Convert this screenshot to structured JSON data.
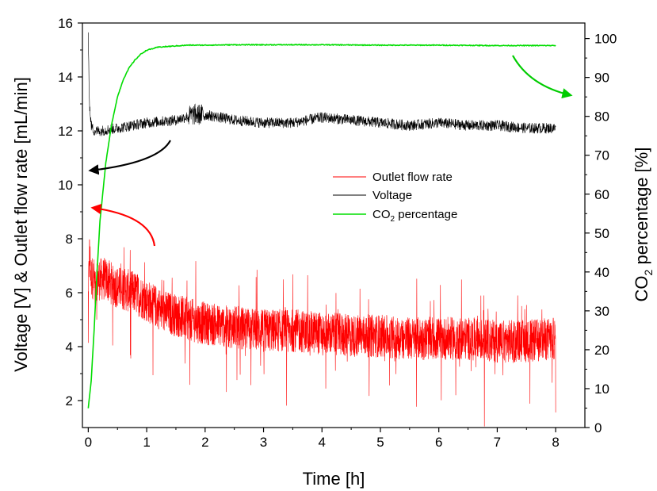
{
  "chart_data": {
    "type": "line",
    "xlabel": "Time [h]",
    "ylabel_left": "Voltage [V] & Outlet flow rate [mL/min]",
    "ylabel_right_main": "CO",
    "ylabel_right_sub": "2",
    "ylabel_right_rest": " percentage [%]",
    "xlim": [
      -0.1,
      8.5
    ],
    "ylim_left": [
      1.0,
      16.0
    ],
    "ylim_right": [
      0,
      104
    ],
    "x_ticks": [
      0,
      1,
      2,
      3,
      4,
      5,
      6,
      7,
      8
    ],
    "y_left_ticks": [
      2,
      4,
      6,
      8,
      10,
      12,
      14,
      16
    ],
    "y_right_ticks": [
      0,
      10,
      20,
      30,
      40,
      50,
      60,
      70,
      80,
      90,
      100
    ],
    "legend": {
      "placement": "center-right",
      "entries": [
        {
          "label": "Outlet flow rate",
          "color": "#ff0000"
        },
        {
          "label": "Voltage",
          "color": "#000000"
        },
        {
          "label_main": "CO",
          "label_sub": "2",
          "label_rest": " percentage",
          "color": "#00dd00"
        }
      ]
    },
    "series": [
      {
        "name": "Outlet flow rate",
        "axis": "left",
        "color": "#ff0000",
        "x": [
          0,
          0.02,
          0.05,
          0.1,
          0.2,
          0.3,
          0.5,
          0.8,
          1.0,
          1.3,
          1.6,
          1.9,
          2.2,
          2.6,
          3.0,
          3.5,
          4.0,
          4.5,
          5.0,
          5.5,
          6.0,
          6.5,
          7.0,
          7.5,
          8.0
        ],
        "y": [
          5.8,
          7.5,
          6.6,
          6.5,
          6.5,
          6.5,
          6.2,
          6.0,
          5.7,
          5.3,
          5.1,
          4.9,
          4.8,
          4.7,
          4.6,
          4.6,
          4.5,
          4.4,
          4.4,
          4.3,
          4.3,
          4.3,
          4.2,
          4.2,
          4.3
        ],
        "noise_amplitude": 0.8
      },
      {
        "name": "Voltage",
        "axis": "left",
        "color": "#000000",
        "x": [
          0,
          0.02,
          0.05,
          0.1,
          0.2,
          0.5,
          1.0,
          1.5,
          1.8,
          2.0,
          2.5,
          3.0,
          3.5,
          4.0,
          4.5,
          5.0,
          5.5,
          6.0,
          6.5,
          7.0,
          7.5,
          8.0
        ],
        "y": [
          15.6,
          13.0,
          12.2,
          12.0,
          12.0,
          12.1,
          12.3,
          12.4,
          12.6,
          12.6,
          12.4,
          12.3,
          12.3,
          12.5,
          12.4,
          12.3,
          12.2,
          12.3,
          12.2,
          12.2,
          12.1,
          12.1
        ],
        "noise_amplitude": 0.2
      },
      {
        "name": "CO2 percentage",
        "axis": "right",
        "color": "#00dd00",
        "x": [
          0,
          0.05,
          0.1,
          0.15,
          0.2,
          0.3,
          0.4,
          0.5,
          0.6,
          0.7,
          0.8,
          0.9,
          1.0,
          1.2,
          1.4,
          1.7,
          2.0,
          2.5,
          3.0,
          4.0,
          5.0,
          6.0,
          7.0,
          8.0
        ],
        "y": [
          5,
          12,
          25,
          40,
          53,
          68,
          78,
          85,
          89.5,
          92.5,
          94.5,
          96,
          97,
          97.8,
          98,
          98.3,
          98.3,
          98.4,
          98.4,
          98.4,
          98.3,
          98.3,
          98.2,
          98.2
        ],
        "noise_amplitude": 0.1
      }
    ]
  }
}
